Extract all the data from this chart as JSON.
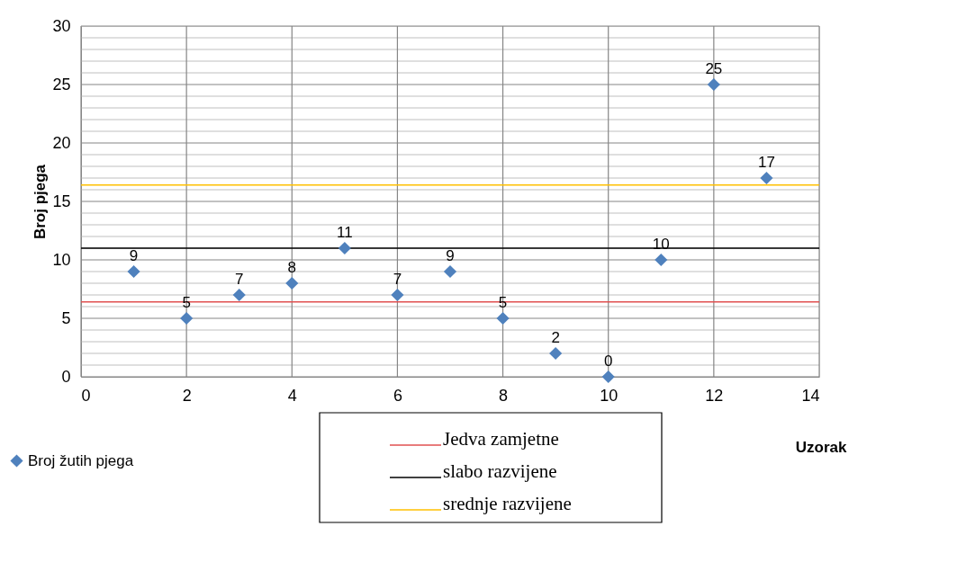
{
  "chart_data": {
    "type": "scatter",
    "xlabel": "Uzorak",
    "ylabel": "Broj pjega",
    "x": [
      1,
      2,
      3,
      4,
      5,
      6,
      7,
      8,
      9,
      10,
      11,
      12,
      13
    ],
    "series": [
      {
        "name": "Broj žutih pjega",
        "color": "#4f81bd",
        "values": [
          9,
          5,
          7,
          8,
          11,
          7,
          9,
          5,
          2,
          0,
          10,
          25,
          17
        ]
      }
    ],
    "marker": "diamond",
    "data_labels": true,
    "xlim": [
      0,
      14
    ],
    "xticks": [
      0,
      2,
      4,
      6,
      8,
      10,
      12,
      14
    ],
    "ylim": [
      0,
      30
    ],
    "yticks": [
      0,
      {
        "value": 1,
        "label": null
      },
      {
        "value": 2,
        "label": null
      },
      {
        "value": 3,
        "label": null
      },
      {
        "value": 4,
        "label": null
      },
      5,
      {
        "value": 6,
        "label": null
      },
      {
        "value": 7,
        "label": null
      },
      {
        "value": 8,
        "label": null
      },
      {
        "value": 9,
        "label": null
      },
      10,
      {
        "value": 11,
        "label": null
      },
      {
        "value": 12,
        "label": null
      },
      {
        "value": 13,
        "label": null
      },
      {
        "value": 14,
        "label": null
      },
      15,
      {
        "value": 16,
        "label": null
      },
      {
        "value": 17,
        "label": null
      },
      {
        "value": 18,
        "label": null
      },
      {
        "value": 19,
        "label": null
      },
      20,
      {
        "value": 21,
        "label": null
      },
      {
        "value": 22,
        "label": null
      },
      {
        "value": 23,
        "label": null
      },
      {
        "value": 24,
        "label": null
      },
      25,
      {
        "value": 26,
        "label": null
      },
      {
        "value": 27,
        "label": null
      },
      {
        "value": 28,
        "label": null
      },
      {
        "value": 29,
        "label": null
      },
      30
    ],
    "grid": true,
    "legend": "bottom left",
    "ref_lines": [
      {
        "axis": "y",
        "value": 6.4,
        "label": "Jedva zamjetne",
        "color": "#e05050"
      },
      {
        "axis": "y",
        "value": 11,
        "label": "slabo razvijene",
        "color": "#000000"
      },
      {
        "axis": "y",
        "value": 16.4,
        "label": "srednje razvijene",
        "color": "#ffc000"
      }
    ]
  }
}
